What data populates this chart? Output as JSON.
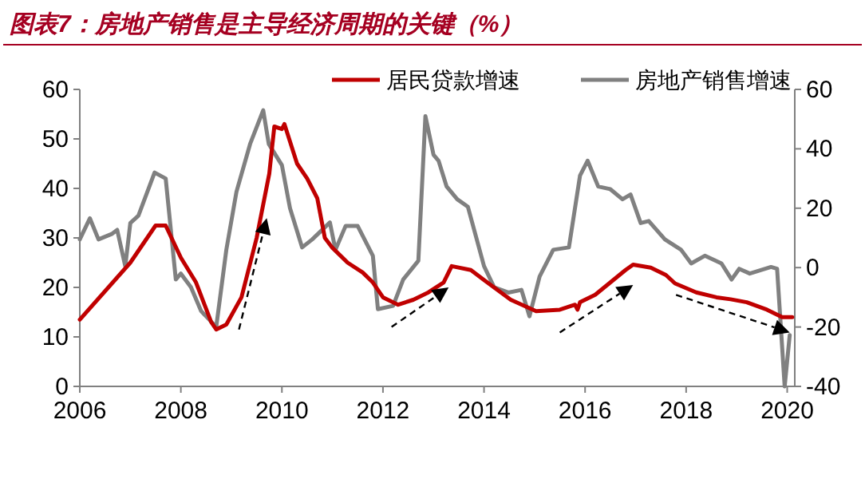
{
  "chart_data": {
    "type": "line",
    "title": "图表7：房地产销售是主导经济周期的关键（%）",
    "legend": "top",
    "grid": false,
    "xlim": [
      2006,
      2020.15
    ],
    "xticks": [
      2006,
      2008,
      2010,
      2012,
      2014,
      2016,
      2018,
      2020
    ],
    "ylim": [
      0,
      60
    ],
    "yticks": [
      0,
      10,
      20,
      30,
      40,
      50,
      60
    ],
    "y2lim": [
      -40,
      60
    ],
    "y2ticks": [
      -40,
      -20,
      0,
      20,
      40,
      60
    ],
    "series": [
      {
        "name": "居民贷款增速",
        "color": "#c00000",
        "x": [
          2006.0,
          2007.0,
          2007.5,
          2007.7,
          2008.0,
          2008.3,
          2008.6,
          2008.7,
          2008.9,
          2009.2,
          2009.5,
          2009.75,
          2009.85,
          2010.0,
          2010.05,
          2010.3,
          2010.5,
          2010.7,
          2010.85,
          2011.0,
          2011.3,
          2011.6,
          2011.8,
          2012.0,
          2012.3,
          2012.6,
          2012.9,
          2013.2,
          2013.36,
          2013.74,
          2014.0,
          2014.53,
          2015.03,
          2015.5,
          2015.8,
          2015.85,
          2015.9,
          2016.2,
          2016.5,
          2016.8,
          2016.95,
          2017.3,
          2017.6,
          2017.78,
          2018.2,
          2018.6,
          2018.88,
          2019.2,
          2019.6,
          2019.9,
          2020.1
        ],
        "values": [
          13.5,
          25,
          32.5,
          32.5,
          26,
          21,
          13,
          11.5,
          12.5,
          18,
          30,
          43,
          52.5,
          52,
          53,
          45,
          42,
          38,
          30,
          28,
          25,
          23,
          21,
          18,
          16.5,
          17.5,
          19,
          21,
          24.3,
          23.5,
          21.5,
          17.5,
          15.2,
          15.5,
          16.5,
          15.5,
          17,
          18.5,
          21,
          23.5,
          24.6,
          24,
          22.5,
          20.8,
          19,
          18,
          17.6,
          17,
          15.5,
          14,
          14
        ]
      },
      {
        "name": "房地产销售增速",
        "color": "#808080",
        "axis": "y2",
        "x": [
          2006.0,
          2006.2,
          2006.37,
          2006.63,
          2006.74,
          2006.9,
          2007.0,
          2007.16,
          2007.48,
          2007.7,
          2007.9,
          2008.0,
          2008.2,
          2008.4,
          2008.7,
          2008.9,
          2009.1,
          2009.37,
          2009.63,
          2009.74,
          2010.0,
          2010.16,
          2010.4,
          2010.6,
          2010.95,
          2011.06,
          2011.26,
          2011.5,
          2011.8,
          2011.9,
          2012.2,
          2012.4,
          2012.7,
          2012.84,
          2013.0,
          2013.1,
          2013.26,
          2013.47,
          2013.68,
          2014.0,
          2014.2,
          2014.48,
          2014.74,
          2014.9,
          2015.1,
          2015.37,
          2015.68,
          2015.9,
          2016.05,
          2016.26,
          2016.5,
          2016.74,
          2016.9,
          2017.1,
          2017.26,
          2017.58,
          2017.9,
          2018.1,
          2018.37,
          2018.7,
          2018.9,
          2019.05,
          2019.26,
          2019.68,
          2019.8,
          2019.95,
          2020.05
        ],
        "values": [
          9.5,
          16.6,
          9.5,
          11.3,
          12.7,
          0.5,
          15,
          17.5,
          32,
          30,
          -4,
          -2,
          -6.6,
          -14.6,
          -20,
          6,
          25.5,
          41.6,
          53,
          41.6,
          34.5,
          20,
          6.8,
          9.5,
          15.2,
          6,
          14,
          14,
          4,
          -14,
          -12.9,
          -4,
          2.3,
          51,
          38,
          36,
          27.3,
          23,
          20.5,
          0.5,
          -6.6,
          -8.4,
          -7.5,
          -16.4,
          -3,
          6,
          6.8,
          31,
          36,
          27.3,
          26.4,
          23,
          24.6,
          15,
          15.7,
          9.5,
          6,
          1.4,
          4,
          1.4,
          -4,
          -0.4,
          -2,
          0.2,
          -0.4,
          -40,
          -22.7
        ]
      }
    ]
  }
}
